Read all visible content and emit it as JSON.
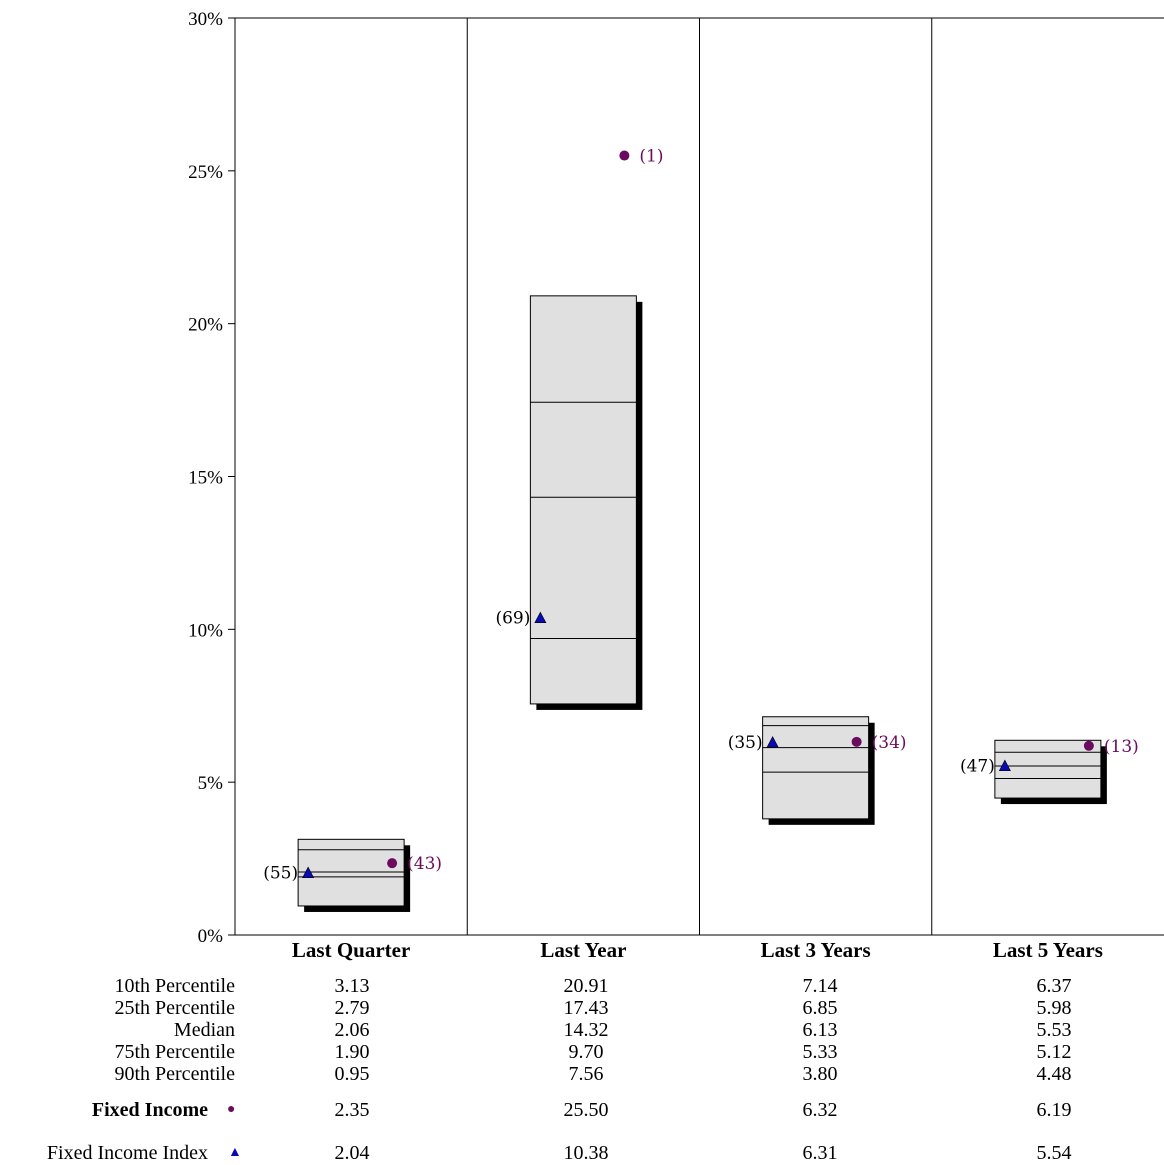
{
  "chart_data": {
    "type": "box",
    "ylim": [
      0,
      30
    ],
    "yticks": [
      "0%",
      "5%",
      "10%",
      "15%",
      "20%",
      "25%",
      "30%"
    ],
    "categories": [
      "Last Quarter",
      "Last Year",
      "Last 3 Years",
      "Last 5 Years"
    ],
    "percentiles": [
      {
        "label": "10th Percentile",
        "values": [
          3.13,
          20.91,
          7.14,
          6.37
        ]
      },
      {
        "label": "25th Percentile",
        "values": [
          2.79,
          17.43,
          6.85,
          5.98
        ]
      },
      {
        "label": "Median",
        "values": [
          2.06,
          14.32,
          6.13,
          5.53
        ]
      },
      {
        "label": "75th Percentile",
        "values": [
          1.9,
          9.7,
          5.33,
          5.12
        ]
      },
      {
        "label": "90th Percentile",
        "values": [
          0.95,
          7.56,
          3.8,
          4.48
        ]
      }
    ],
    "series": [
      {
        "name": "Fixed Income",
        "marker": "circle",
        "color": "#6b0a5e",
        "values": [
          "2.35",
          "25.50",
          "6.32",
          "6.19"
        ],
        "ranks": [
          "(43)",
          "(1)",
          "(34)",
          "(13)"
        ]
      },
      {
        "name": "Fixed Income Index",
        "marker": "triangle",
        "color": "#0a0ab4",
        "values": [
          "2.04",
          "10.38",
          "6.31",
          "5.54"
        ],
        "ranks": [
          "(55)",
          "(69)",
          "(35)",
          "(47)"
        ]
      }
    ],
    "box_fill": "#e0e0e0",
    "shadow_color": "#000000"
  },
  "table": {
    "rows": [
      {
        "label": "10th Percentile",
        "values": [
          "3.13",
          "20.91",
          "7.14",
          "6.37"
        ]
      },
      {
        "label": "25th Percentile",
        "values": [
          "2.79",
          "17.43",
          "6.85",
          "5.98"
        ]
      },
      {
        "label": "Median",
        "values": [
          "2.06",
          "14.32",
          "6.13",
          "5.53"
        ]
      },
      {
        "label": "75th Percentile",
        "values": [
          "1.90",
          "9.70",
          "5.33",
          "5.12"
        ]
      },
      {
        "label": "90th Percentile",
        "values": [
          "0.95",
          "7.56",
          "3.80",
          "4.48"
        ]
      }
    ],
    "fund_label": "Fixed Income",
    "fund_values": [
      "2.35",
      "25.50",
      "6.32",
      "6.19"
    ],
    "index_label": "Fixed Income Index",
    "index_values": [
      "2.04",
      "10.38",
      "6.31",
      "5.54"
    ]
  }
}
